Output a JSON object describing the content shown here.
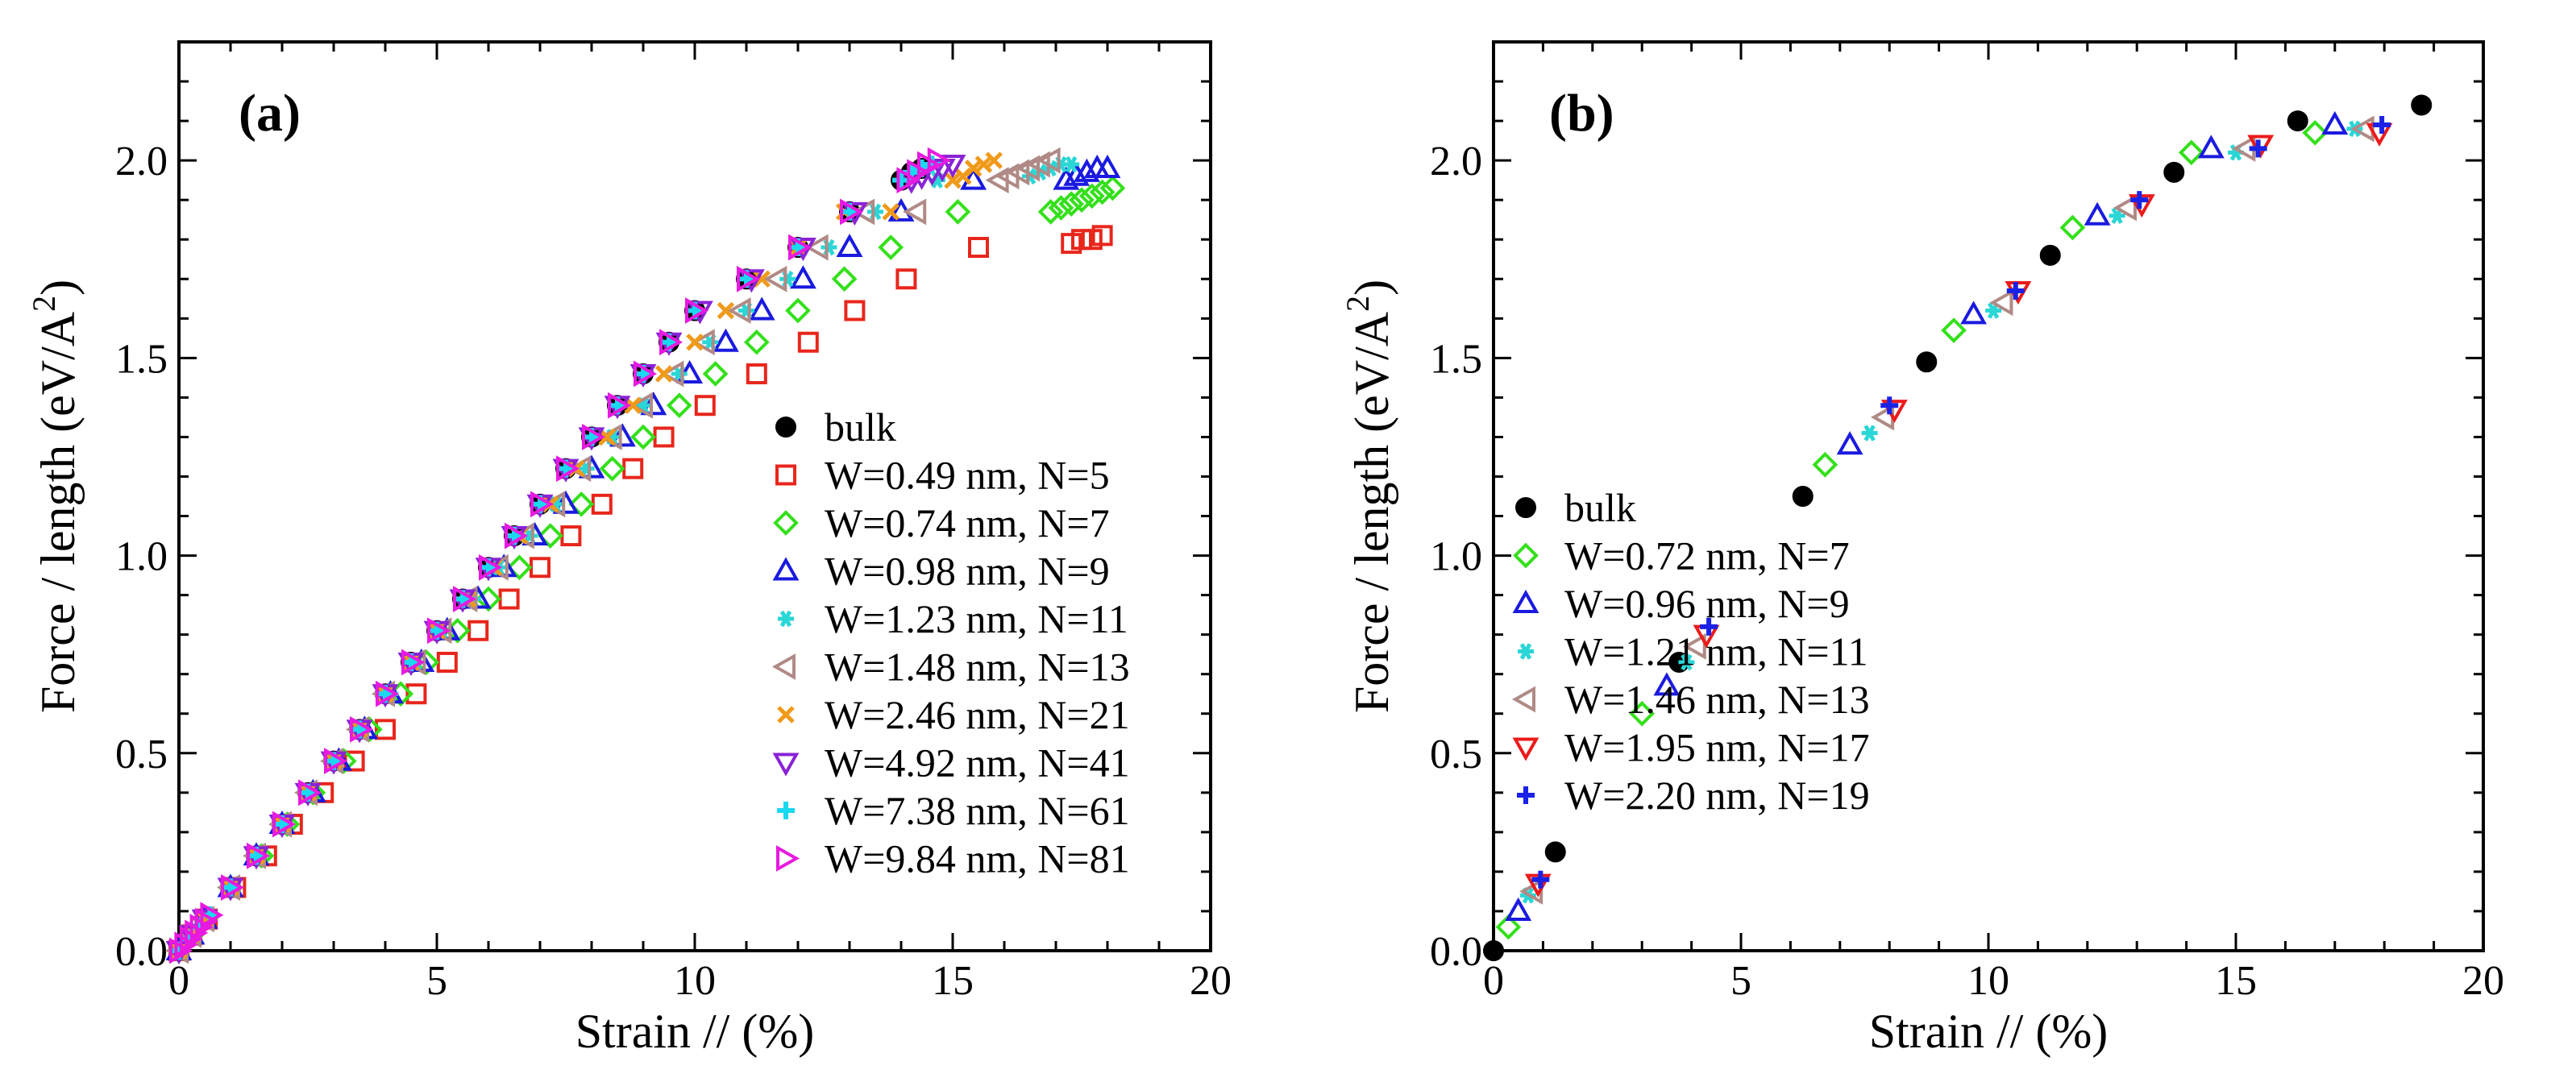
{
  "colors": {
    "black": "#000000",
    "red": "#e8261b",
    "green": "#33e01a",
    "blue": "#1a1ae0",
    "cyan": "#2ad6d6",
    "rosy": "#b08a86",
    "orange": "#f09a1a",
    "purple": "#8a22d6",
    "aqua": "#1ad8f0",
    "magenta": "#e81ae0",
    "red2": "#ec1a1a",
    "blue2": "#1a22e6"
  },
  "chart_data": [
    {
      "type": "scatter",
      "panel_label": "(a)",
      "xlabel": "Strain //  (%)",
      "ylabel": "Force / length  (eV/A",
      "ylabel_sup": "2",
      "ylabel_close": ")",
      "xlim": [
        0,
        20
      ],
      "ylim": [
        0,
        2.3
      ],
      "xticks": [
        {
          "v": 0,
          "label": "0"
        },
        {
          "v": 5,
          "label": "5"
        },
        {
          "v": 10,
          "label": "10"
        },
        {
          "v": 15,
          "label": "15"
        },
        {
          "v": 20,
          "label": "20"
        }
      ],
      "yticks": [
        {
          "v": 0,
          "label": "0.0"
        },
        {
          "v": 0.5,
          "label": "0.5"
        },
        {
          "v": 1.0,
          "label": "1.0"
        },
        {
          "v": 1.5,
          "label": "1.5"
        },
        {
          "v": 2.0,
          "label": "2.0"
        }
      ],
      "legend_position": "right",
      "series": [
        {
          "name": "bulk",
          "marker": "circle",
          "color": "black",
          "x": [
            0,
            0.25,
            0.5,
            1.0,
            1.5,
            2.0,
            2.5,
            3.0,
            3.5,
            4.0,
            4.5,
            5.0,
            5.5,
            6.0,
            6.5,
            7.0,
            7.5,
            8.0,
            8.5,
            9.0,
            9.5,
            10.0,
            11.0,
            12.0,
            13.0,
            14.0,
            14.2,
            14.4
          ],
          "y": [
            0,
            0.04,
            0.08,
            0.16,
            0.24,
            0.32,
            0.4,
            0.48,
            0.56,
            0.65,
            0.73,
            0.81,
            0.89,
            0.97,
            1.05,
            1.13,
            1.22,
            1.3,
            1.38,
            1.46,
            1.54,
            1.62,
            1.7,
            1.78,
            1.87,
            1.95,
            1.97,
            1.98
          ]
        },
        {
          "name": "W=0.49 nm, N=5",
          "marker": "square",
          "color": "red",
          "x": [
            0,
            0.25,
            0.55,
            1.1,
            1.7,
            2.2,
            2.8,
            3.4,
            4.0,
            4.6,
            5.2,
            5.8,
            6.4,
            7.0,
            7.6,
            8.2,
            8.8,
            9.4,
            10.2,
            11.2,
            12.2,
            13.1,
            14.1,
            15.5,
            17.3,
            17.5,
            17.7,
            17.9
          ],
          "y": [
            0,
            0.04,
            0.08,
            0.16,
            0.24,
            0.32,
            0.4,
            0.48,
            0.56,
            0.65,
            0.73,
            0.81,
            0.89,
            0.97,
            1.05,
            1.13,
            1.22,
            1.3,
            1.38,
            1.46,
            1.54,
            1.62,
            1.7,
            1.78,
            1.79,
            1.8,
            1.8,
            1.81
          ]
        },
        {
          "name": "W=0.74 nm, N=7",
          "marker": "diamond",
          "color": "green",
          "x": [
            0,
            0.25,
            0.5,
            1.0,
            1.6,
            2.1,
            2.6,
            3.2,
            3.7,
            4.3,
            4.8,
            5.4,
            6.0,
            6.6,
            7.2,
            7.8,
            8.4,
            9.0,
            9.7,
            10.4,
            11.2,
            12.0,
            12.9,
            13.8,
            15.1,
            16.9,
            17.1,
            17.3,
            17.5,
            17.7,
            17.9,
            18.1
          ],
          "y": [
            0,
            0.04,
            0.08,
            0.16,
            0.24,
            0.32,
            0.4,
            0.48,
            0.56,
            0.65,
            0.73,
            0.81,
            0.89,
            0.97,
            1.05,
            1.13,
            1.22,
            1.3,
            1.38,
            1.46,
            1.54,
            1.62,
            1.7,
            1.78,
            1.87,
            1.87,
            1.88,
            1.89,
            1.9,
            1.91,
            1.92,
            1.93
          ]
        },
        {
          "name": "W=0.98 nm, N=9",
          "marker": "triangle-up",
          "color": "blue",
          "x": [
            0,
            0.25,
            0.5,
            1.0,
            1.5,
            2.0,
            2.6,
            3.1,
            3.6,
            4.1,
            4.7,
            5.2,
            5.8,
            6.3,
            6.9,
            7.5,
            8.0,
            8.6,
            9.2,
            9.9,
            10.6,
            11.3,
            12.1,
            13.0,
            14.0,
            15.4,
            17.2,
            17.4,
            17.6,
            17.8,
            18.0
          ],
          "y": [
            0,
            0.04,
            0.08,
            0.16,
            0.24,
            0.32,
            0.4,
            0.48,
            0.56,
            0.65,
            0.73,
            0.81,
            0.89,
            0.97,
            1.05,
            1.13,
            1.22,
            1.3,
            1.38,
            1.46,
            1.54,
            1.62,
            1.7,
            1.78,
            1.87,
            1.95,
            1.95,
            1.96,
            1.97,
            1.98,
            1.98
          ]
        },
        {
          "name": "W=1.23 nm, N=11",
          "marker": "asterisk",
          "color": "cyan",
          "x": [
            0,
            0.25,
            0.5,
            1.0,
            1.5,
            2.0,
            2.5,
            3.0,
            3.5,
            4.1,
            4.6,
            5.1,
            5.7,
            6.2,
            6.8,
            7.3,
            7.9,
            8.4,
            9.0,
            9.7,
            10.3,
            11.0,
            11.8,
            12.6,
            13.5,
            14.7,
            16.5,
            16.7,
            16.9,
            17.1,
            17.3
          ],
          "y": [
            0,
            0.04,
            0.08,
            0.16,
            0.24,
            0.32,
            0.4,
            0.48,
            0.56,
            0.65,
            0.73,
            0.81,
            0.89,
            0.97,
            1.05,
            1.13,
            1.22,
            1.3,
            1.38,
            1.46,
            1.54,
            1.62,
            1.7,
            1.78,
            1.87,
            1.95,
            1.96,
            1.97,
            1.98,
            1.99,
            1.99
          ]
        },
        {
          "name": "W=1.48 nm, N=13",
          "marker": "triangle-left",
          "color": "rosy",
          "x": [
            0,
            0.25,
            0.5,
            1.0,
            1.5,
            2.0,
            2.5,
            3.0,
            3.5,
            4.0,
            4.6,
            5.1,
            5.6,
            6.2,
            6.7,
            7.3,
            7.8,
            8.4,
            9.0,
            9.6,
            10.2,
            10.9,
            11.6,
            12.4,
            13.3,
            14.3,
            15.9,
            16.1,
            16.3,
            16.5,
            16.7,
            16.9
          ],
          "y": [
            0,
            0.04,
            0.08,
            0.16,
            0.24,
            0.32,
            0.4,
            0.48,
            0.56,
            0.65,
            0.73,
            0.81,
            0.89,
            0.97,
            1.05,
            1.13,
            1.22,
            1.3,
            1.38,
            1.46,
            1.54,
            1.62,
            1.7,
            1.78,
            1.87,
            1.87,
            1.95,
            1.96,
            1.97,
            1.98,
            1.99,
            2.0
          ]
        },
        {
          "name": "W=2.46 nm, N=21",
          "marker": "x",
          "color": "orange",
          "x": [
            0,
            0.25,
            0.5,
            1.0,
            1.5,
            2.0,
            2.5,
            3.0,
            3.5,
            4.0,
            4.5,
            5.0,
            5.6,
            6.1,
            6.6,
            7.2,
            7.7,
            8.3,
            8.8,
            9.4,
            10.0,
            10.6,
            11.3,
            12.0,
            12.9,
            13.8,
            15.0,
            15.2,
            15.4,
            15.6,
            15.8
          ],
          "y": [
            0,
            0.04,
            0.08,
            0.16,
            0.24,
            0.32,
            0.4,
            0.48,
            0.56,
            0.65,
            0.73,
            0.81,
            0.89,
            0.97,
            1.05,
            1.13,
            1.22,
            1.3,
            1.38,
            1.46,
            1.54,
            1.62,
            1.7,
            1.78,
            1.87,
            1.87,
            1.95,
            1.96,
            1.98,
            1.99,
            2.0
          ]
        },
        {
          "name": "W=4.92 nm, N=41",
          "marker": "triangle-down",
          "color": "purple",
          "x": [
            0,
            0.25,
            0.5,
            1.0,
            1.5,
            2.0,
            2.5,
            3.0,
            3.5,
            4.0,
            4.5,
            5.0,
            5.5,
            6.0,
            6.5,
            7.0,
            7.5,
            8.0,
            8.5,
            9.0,
            9.5,
            10.1,
            11.1,
            12.1,
            13.1,
            14.2,
            14.4,
            14.6,
            14.8,
            15.0
          ],
          "y": [
            0,
            0.04,
            0.08,
            0.16,
            0.24,
            0.32,
            0.4,
            0.48,
            0.56,
            0.65,
            0.73,
            0.81,
            0.89,
            0.97,
            1.05,
            1.13,
            1.22,
            1.3,
            1.38,
            1.46,
            1.54,
            1.62,
            1.7,
            1.78,
            1.87,
            1.95,
            1.96,
            1.97,
            1.98,
            1.99
          ]
        },
        {
          "name": "W=7.38 nm, N=61",
          "marker": "plus",
          "color": "aqua",
          "x": [
            0,
            0.2,
            0.4,
            0.6,
            1.0,
            1.5,
            2.0,
            2.5,
            3.0,
            3.5,
            4.0,
            4.5,
            5.0,
            5.5,
            6.0,
            6.5,
            7.0,
            7.5,
            8.0,
            8.5,
            9.0,
            9.5,
            10.0,
            11.0,
            12.0,
            13.0,
            14.0,
            14.2,
            14.4,
            14.6
          ],
          "y": [
            0,
            0.03,
            0.06,
            0.09,
            0.16,
            0.24,
            0.32,
            0.4,
            0.48,
            0.56,
            0.65,
            0.73,
            0.81,
            0.89,
            0.97,
            1.05,
            1.13,
            1.22,
            1.3,
            1.38,
            1.46,
            1.54,
            1.62,
            1.7,
            1.78,
            1.87,
            1.95,
            1.97,
            1.98,
            1.99
          ]
        },
        {
          "name": "W=9.84 nm, N=81",
          "marker": "triangle-right",
          "color": "magenta",
          "x": [
            0,
            0.1,
            0.2,
            0.3,
            0.4,
            0.5,
            0.6,
            1.0,
            1.5,
            2.0,
            2.5,
            3.0,
            3.5,
            4.0,
            4.5,
            5.0,
            5.5,
            6.0,
            6.5,
            7.0,
            7.5,
            8.0,
            8.5,
            9.0,
            9.5,
            10.0,
            11.0,
            12.0,
            13.0,
            14.1,
            14.3,
            14.5,
            14.7
          ],
          "y": [
            0,
            0.015,
            0.03,
            0.045,
            0.06,
            0.075,
            0.09,
            0.16,
            0.24,
            0.32,
            0.4,
            0.48,
            0.56,
            0.65,
            0.73,
            0.81,
            0.89,
            0.97,
            1.05,
            1.13,
            1.22,
            1.3,
            1.38,
            1.46,
            1.54,
            1.62,
            1.7,
            1.78,
            1.87,
            1.95,
            1.97,
            1.99,
            2.0
          ]
        }
      ]
    },
    {
      "type": "scatter",
      "panel_label": "(b)",
      "xlabel": "Strain //  (%)",
      "ylabel": "Force / length  (eV/A",
      "ylabel_sup": "2",
      "ylabel_close": ")",
      "xlim": [
        0,
        20
      ],
      "ylim": [
        0,
        2.3
      ],
      "xticks": [
        {
          "v": 0,
          "label": "0"
        },
        {
          "v": 5,
          "label": "5"
        },
        {
          "v": 10,
          "label": "10"
        },
        {
          "v": 15,
          "label": "15"
        },
        {
          "v": 20,
          "label": "20"
        }
      ],
      "yticks": [
        {
          "v": 0,
          "label": "0.0"
        },
        {
          "v": 0.5,
          "label": "0.5"
        },
        {
          "v": 1.0,
          "label": "1.0"
        },
        {
          "v": 1.5,
          "label": "1.5"
        },
        {
          "v": 2.0,
          "label": "2.0"
        }
      ],
      "legend_position": "right",
      "series": [
        {
          "name": "bulk",
          "marker": "circle",
          "color": "black",
          "x": [
            0,
            1.25,
            3.75,
            6.25,
            8.75,
            11.25,
            13.75,
            16.25,
            18.75
          ],
          "y": [
            0,
            0.25,
            0.73,
            1.15,
            1.49,
            1.76,
            1.97,
            2.1,
            2.14
          ]
        },
        {
          "name": "W=0.72 nm, N=7",
          "marker": "diamond",
          "color": "green",
          "x": [
            0.3,
            3.0,
            6.7,
            9.3,
            11.7,
            14.1,
            16.6
          ],
          "y": [
            0.06,
            0.6,
            1.23,
            1.57,
            1.83,
            2.02,
            2.07
          ]
        },
        {
          "name": "W=0.96 nm, N=9",
          "marker": "triangle-up",
          "color": "blue",
          "x": [
            0.5,
            3.5,
            7.2,
            9.7,
            12.2,
            14.5,
            17.0
          ],
          "y": [
            0.1,
            0.67,
            1.28,
            1.61,
            1.86,
            2.03,
            2.09
          ]
        },
        {
          "name": "W=1.21 nm, N=11",
          "marker": "asterisk",
          "color": "cyan",
          "x": [
            0.7,
            3.9,
            7.6,
            10.1,
            12.6,
            15.0,
            17.4
          ],
          "y": [
            0.14,
            0.73,
            1.31,
            1.62,
            1.86,
            2.02,
            2.08
          ]
        },
        {
          "name": "W=1.46 nm, N=13",
          "marker": "triangle-left",
          "color": "rosy",
          "x": [
            0.8,
            4.1,
            7.9,
            10.3,
            12.8,
            15.2,
            17.6
          ],
          "y": [
            0.15,
            0.77,
            1.35,
            1.64,
            1.88,
            2.03,
            2.08
          ]
        },
        {
          "name": "W=1.95 nm, N=17",
          "marker": "triangle-down",
          "color": "red2",
          "x": [
            0.9,
            4.3,
            8.1,
            10.6,
            13.1,
            15.5,
            17.9
          ],
          "y": [
            0.17,
            0.8,
            1.37,
            1.67,
            1.89,
            2.04,
            2.07
          ]
        },
        {
          "name": "W=2.20 nm, N=19",
          "marker": "plus",
          "color": "blue2",
          "x": [
            0.95,
            4.35,
            8.0,
            10.55,
            13.05,
            15.45,
            17.95
          ],
          "y": [
            0.18,
            0.82,
            1.38,
            1.67,
            1.9,
            2.03,
            2.09
          ]
        }
      ]
    }
  ]
}
